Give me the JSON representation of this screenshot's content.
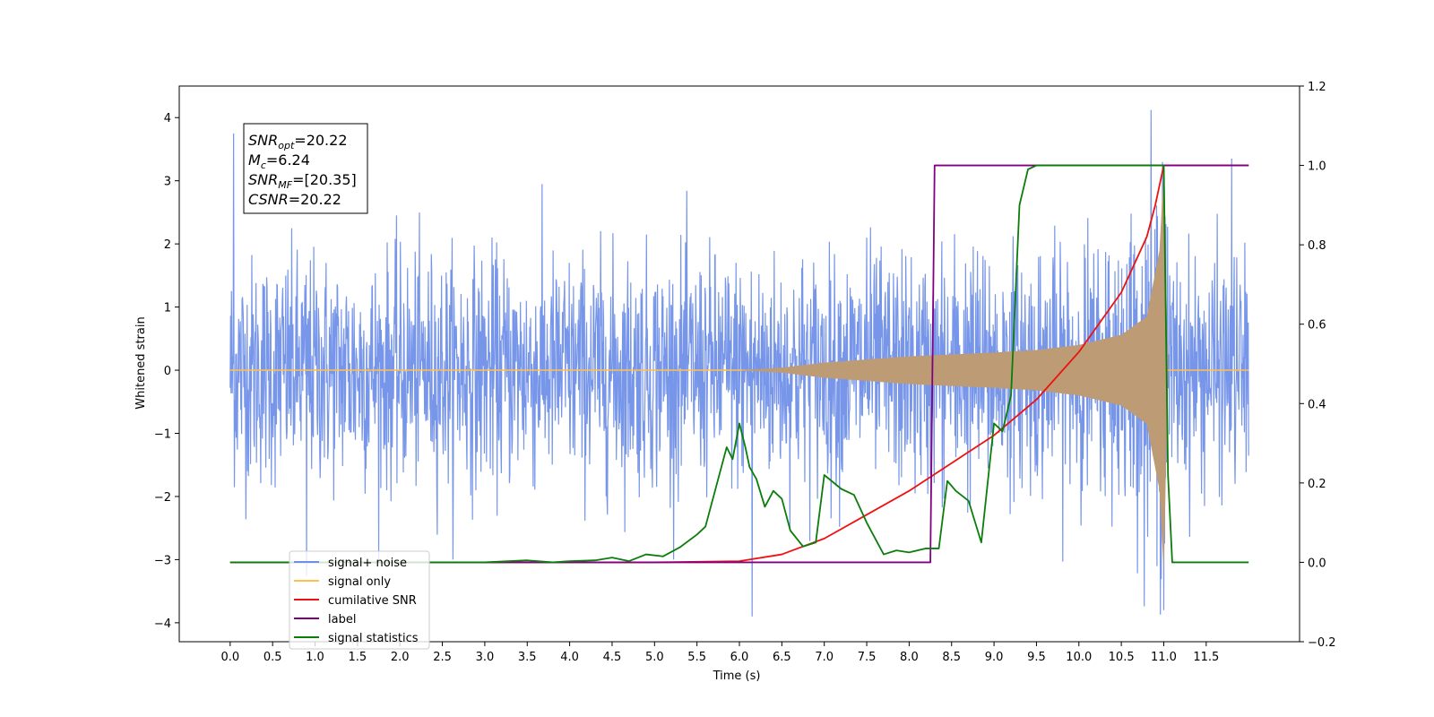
{
  "chart_data": {
    "type": "line",
    "xlabel": "Time (s)",
    "ylabel": "Whitened strain",
    "xlim": [
      -0.6,
      12.6
    ],
    "ylim": [
      -4.3,
      4.5
    ],
    "y2lim": [
      -0.2,
      1.2
    ],
    "x_ticks": [
      "0.0",
      "0.5",
      "1.0",
      "1.5",
      "2.0",
      "2.5",
      "3.0",
      "3.5",
      "4.0",
      "4.5",
      "5.0",
      "5.5",
      "6.0",
      "6.5",
      "7.0",
      "7.5",
      "8.0",
      "8.5",
      "9.0",
      "9.5",
      "10.0",
      "10.5",
      "11.0",
      "11.5"
    ],
    "y_ticks": [
      "4",
      "3",
      "2",
      "1",
      "0",
      "−1",
      "−2",
      "−3",
      "−4"
    ],
    "y2_ticks": [
      "1.2",
      "1.0",
      "0.8",
      "0.6",
      "0.4",
      "0.2",
      "0.0",
      "−0.2"
    ],
    "grid": false,
    "legend_position": "lower-left",
    "annotation": {
      "lines": [
        {
          "main": "SNR",
          "sub": "opt",
          "value": "=20.22"
        },
        {
          "main": "M",
          "sub": "c",
          "value": "=6.24"
        },
        {
          "main": "SNR",
          "sub": "MF",
          "value": "=[20.35]"
        },
        {
          "main": "CSNR",
          "sub": "",
          "value": "=20.22"
        }
      ]
    },
    "series": [
      {
        "name": "signal+ noise",
        "axis": "left",
        "color": "#7090e8",
        "description_type": "noise",
        "x_range": [
          0.0,
          12.0
        ],
        "noise_std": 0.9,
        "peak_values": [
          3.75,
          -3.25,
          -3.9,
          4.12,
          -3.8,
          3.35,
          2.1
        ]
      },
      {
        "name": "signal only",
        "axis": "left",
        "color": "#ffc04d",
        "blend_color": "#bc9b75",
        "x_range": [
          0.0,
          12.0
        ],
        "chirp": {
          "start": 6.0,
          "merger": 11.0,
          "end": 11.05,
          "amplitude_points": [
            [
              6.0,
              0.0
            ],
            [
              6.5,
              0.04
            ],
            [
              7.0,
              0.12
            ],
            [
              8.0,
              0.22
            ],
            [
              9.0,
              0.28
            ],
            [
              9.5,
              0.32
            ],
            [
              10.0,
              0.4
            ],
            [
              10.5,
              0.56
            ],
            [
              10.8,
              0.85
            ],
            [
              10.95,
              1.9
            ],
            [
              11.0,
              3.2
            ],
            [
              11.05,
              0.0
            ]
          ]
        }
      },
      {
        "name": "cumilative SNR",
        "axis": "right",
        "color": "#ee1111",
        "x": [
          0.0,
          5.0,
          6.0,
          6.5,
          7.0,
          7.5,
          8.0,
          8.5,
          9.0,
          9.5,
          10.0,
          10.5,
          10.8,
          10.9,
          11.0,
          12.0
        ],
        "y": [
          0.0,
          0.0,
          0.003,
          0.02,
          0.06,
          0.12,
          0.18,
          0.25,
          0.32,
          0.41,
          0.53,
          0.68,
          0.82,
          0.9,
          1.0,
          1.0
        ]
      },
      {
        "name": "label",
        "axis": "right",
        "color": "#800080",
        "x": [
          0.0,
          8.25,
          8.3,
          11.0,
          11.05,
          11.1,
          12.0
        ],
        "y": [
          0.0,
          0.0,
          1.0,
          1.0,
          1.0,
          1.0,
          1.0
        ]
      },
      {
        "name": "signal statistics",
        "axis": "right",
        "color": "#0a7d0a",
        "x": [
          0.0,
          3.0,
          3.5,
          3.8,
          4.0,
          4.3,
          4.5,
          4.7,
          4.9,
          5.1,
          5.3,
          5.5,
          5.6,
          5.75,
          5.85,
          5.92,
          6.0,
          6.07,
          6.12,
          6.2,
          6.3,
          6.4,
          6.5,
          6.6,
          6.75,
          6.9,
          7.0,
          7.2,
          7.35,
          7.5,
          7.7,
          7.85,
          8.0,
          8.2,
          8.35,
          8.45,
          8.55,
          8.7,
          8.85,
          9.0,
          9.1,
          9.2,
          9.3,
          9.4,
          9.5,
          9.6,
          10.0,
          10.5,
          10.9,
          11.0,
          11.05,
          11.1,
          12.0
        ],
        "y": [
          0.0,
          0.0,
          0.005,
          0.0,
          0.003,
          0.005,
          0.012,
          0.003,
          0.02,
          0.015,
          0.038,
          0.07,
          0.09,
          0.21,
          0.29,
          0.26,
          0.35,
          0.29,
          0.24,
          0.21,
          0.14,
          0.18,
          0.16,
          0.08,
          0.04,
          0.05,
          0.22,
          0.185,
          0.17,
          0.1,
          0.02,
          0.03,
          0.025,
          0.035,
          0.035,
          0.205,
          0.18,
          0.155,
          0.05,
          0.35,
          0.33,
          0.42,
          0.9,
          0.99,
          1.0,
          1.0,
          1.0,
          1.0,
          1.0,
          1.0,
          0.22,
          0.0,
          0.0
        ]
      }
    ]
  }
}
